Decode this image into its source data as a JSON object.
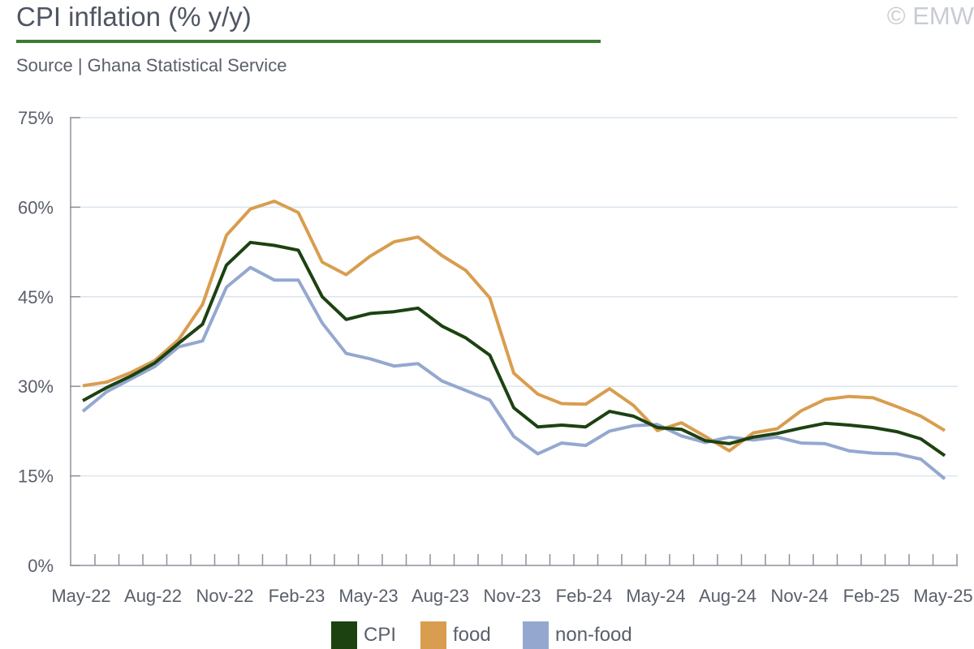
{
  "header": {
    "title": "CPI inflation (% y/y)",
    "copyright": "© EMW",
    "subtitle": "Source | Ghana Statistical Service"
  },
  "colors": {
    "cpi": "#1c4211",
    "food": "#d99d4f",
    "nonfood": "#94a8cf",
    "grid": "#dbe5ee",
    "axis": "#8b909a",
    "title_rule": "#3d7a35"
  },
  "chart_data": {
    "type": "line",
    "x": [
      "May-22",
      "Jun-22",
      "Jul-22",
      "Aug-22",
      "Sep-22",
      "Oct-22",
      "Nov-22",
      "Dec-22",
      "Jan-23",
      "Feb-23",
      "Mar-23",
      "Apr-23",
      "May-23",
      "Jun-23",
      "Jul-23",
      "Aug-23",
      "Sep-23",
      "Oct-23",
      "Nov-23",
      "Dec-23",
      "Jan-24",
      "Feb-24",
      "Mar-24",
      "Apr-24",
      "May-24",
      "Jun-24",
      "Jul-24",
      "Aug-24",
      "Sep-24",
      "Oct-24",
      "Nov-24",
      "Dec-24",
      "Jan-25",
      "Feb-25",
      "Mar-25",
      "Apr-25",
      "May-25"
    ],
    "x_tick_labels": [
      "May-22",
      "Aug-22",
      "Nov-22",
      "Feb-23",
      "May-23",
      "Aug-23",
      "Nov-23",
      "Feb-24",
      "May-24",
      "Aug-24",
      "Nov-24",
      "Feb-25",
      "May-25"
    ],
    "y_ticks": [
      "0%",
      "15%",
      "30%",
      "45%",
      "60%",
      "75%"
    ],
    "ylim": [
      0,
      75
    ],
    "grid": true,
    "legend_position": "bottom",
    "series": [
      {
        "name": "CPI",
        "values": [
          27.6,
          29.8,
          31.7,
          33.9,
          37.2,
          40.4,
          50.3,
          54.1,
          53.6,
          52.8,
          45.0,
          41.2,
          42.2,
          42.5,
          43.1,
          40.1,
          38.1,
          35.2,
          26.4,
          23.2,
          23.5,
          23.2,
          25.8,
          25.0,
          23.1,
          22.8,
          20.9,
          20.4,
          21.5,
          22.1,
          23.0,
          23.8,
          23.5,
          23.1,
          22.4,
          21.2,
          18.4
        ]
      },
      {
        "name": "food",
        "values": [
          30.1,
          30.7,
          32.3,
          34.3,
          37.8,
          43.7,
          55.3,
          59.7,
          61.0,
          59.1,
          50.8,
          48.7,
          51.8,
          54.2,
          55.0,
          51.9,
          49.4,
          44.8,
          32.2,
          28.7,
          27.1,
          27.0,
          29.6,
          26.8,
          22.6,
          23.9,
          21.6,
          19.2,
          22.2,
          22.9,
          25.9,
          27.8,
          28.3,
          28.1,
          26.6,
          25.0,
          22.6
        ]
      },
      {
        "name": "non-food",
        "values": [
          25.8,
          29.1,
          31.2,
          33.3,
          36.6,
          37.6,
          46.6,
          49.9,
          47.8,
          47.8,
          40.6,
          35.5,
          34.6,
          33.4,
          33.8,
          30.9,
          29.3,
          27.7,
          21.6,
          18.7,
          20.5,
          20.1,
          22.5,
          23.4,
          23.6,
          21.7,
          20.6,
          21.5,
          21.0,
          21.5,
          20.5,
          20.4,
          19.2,
          18.8,
          18.7,
          17.8,
          14.5
        ]
      }
    ]
  }
}
